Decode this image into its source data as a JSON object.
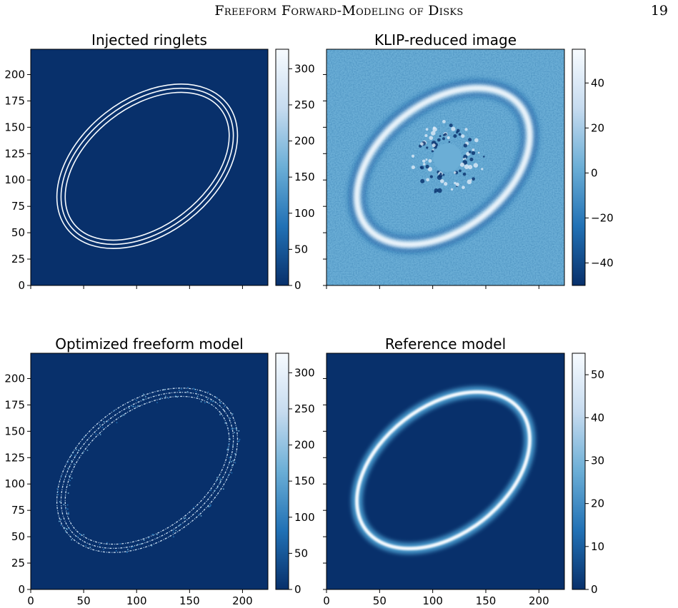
{
  "header": {
    "running_title": "Freeform Forward-Modeling of Disks",
    "page_number": "19"
  },
  "colormap": "Blues_r",
  "colors": {
    "dark": "#08306b",
    "mid": "#6baed6",
    "light": "#f7fbff"
  },
  "chart_data": [
    {
      "type": "heatmap",
      "title": "Injected ringlets",
      "xlabel": "",
      "ylabel": "",
      "xlim": [
        0,
        224
      ],
      "ylim": [
        0,
        224
      ],
      "xticks": [],
      "yticks": [
        0,
        25,
        50,
        75,
        100,
        125,
        150,
        175,
        200
      ],
      "colorbar": {
        "min": 0,
        "max": 327,
        "ticks": [
          0,
          50,
          100,
          150,
          200,
          250,
          300
        ]
      },
      "content": "three thin concentric elliptical ringlets",
      "ellipse": {
        "center": [
          110,
          113
        ],
        "semi_major": 92,
        "semi_minor": 60,
        "angle_deg": 38
      }
    },
    {
      "type": "heatmap",
      "title": "KLIP-reduced image",
      "xlabel": "",
      "ylabel": "",
      "xlim": [
        0,
        224
      ],
      "ylim": [
        0,
        224
      ],
      "xticks": [],
      "yticks": [],
      "colorbar": {
        "min": -50,
        "max": 55,
        "ticks": [
          -40,
          -20,
          0,
          20,
          40
        ]
      },
      "content": "bright elliptical ring over noisy background with central mask",
      "ellipse": {
        "center": [
          110,
          113
        ],
        "semi_major": 92,
        "semi_minor": 60,
        "angle_deg": 38
      }
    },
    {
      "type": "heatmap",
      "title": "Optimized freeform model",
      "xlabel": "",
      "ylabel": "",
      "xlim": [
        0,
        224
      ],
      "ylim": [
        0,
        224
      ],
      "xticks": [
        0,
        50,
        100,
        150,
        200
      ],
      "yticks": [
        0,
        25,
        50,
        75,
        100,
        125,
        150,
        175,
        200
      ],
      "colorbar": {
        "min": 0,
        "max": 327,
        "ticks": [
          0,
          50,
          100,
          150,
          200,
          250,
          300
        ]
      },
      "content": "speckled elliptical ringlets",
      "ellipse": {
        "center": [
          110,
          113
        ],
        "semi_major": 92,
        "semi_minor": 60,
        "angle_deg": 38
      }
    },
    {
      "type": "heatmap",
      "title": "Reference model",
      "xlabel": "",
      "ylabel": "",
      "xlim": [
        0,
        224
      ],
      "ylim": [
        0,
        224
      ],
      "xticks": [
        0,
        50,
        100,
        150,
        200
      ],
      "yticks": [],
      "colorbar": {
        "min": 0,
        "max": 55,
        "ticks": [
          0,
          10,
          20,
          30,
          40,
          50
        ]
      },
      "content": "smooth elliptical ring",
      "ellipse": {
        "center": [
          110,
          113
        ],
        "semi_major": 92,
        "semi_minor": 60,
        "angle_deg": 38
      }
    }
  ]
}
